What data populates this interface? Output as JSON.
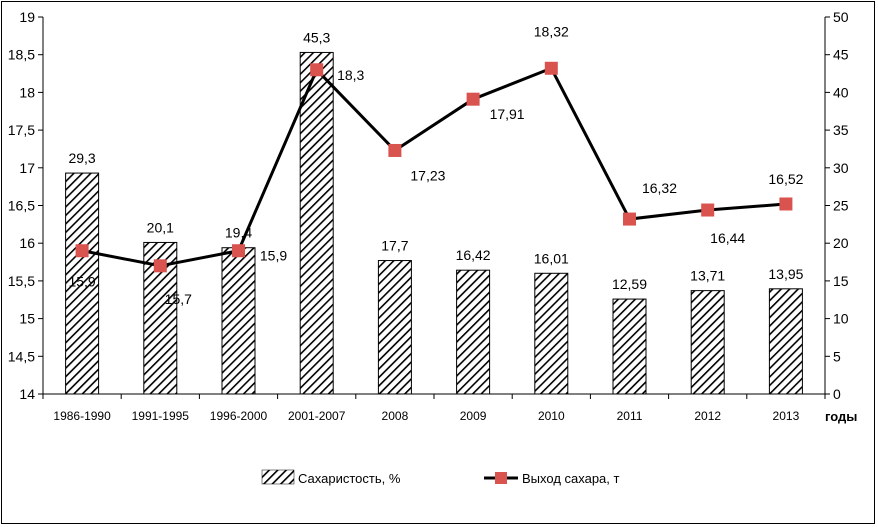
{
  "chart_data": {
    "type": "bar+line",
    "xlabel": "годы",
    "categories": [
      "1986-1990",
      "1991-1995",
      "1996-2000",
      "2001-2007",
      "2008",
      "2009",
      "2010",
      "2011",
      "2012",
      "2013"
    ],
    "series": [
      {
        "name": "Сахаристость, %",
        "kind": "bar",
        "axis": "right",
        "values": [
          29.3,
          20.1,
          19.4,
          45.3,
          17.7,
          16.42,
          16.01,
          12.59,
          13.71,
          13.95
        ],
        "labels": [
          "29,3",
          "20,1",
          "19,4",
          "45,3",
          "17,7",
          "16,42",
          "16,01",
          "12,59",
          "13,71",
          "13,95"
        ],
        "fill": "hatched diagonal black on white"
      },
      {
        "name": "Выход сахара, т",
        "kind": "line",
        "axis": "left",
        "values": [
          15.9,
          15.7,
          15.9,
          18.3,
          17.23,
          17.91,
          18.32,
          16.32,
          16.44,
          16.52
        ],
        "labels": [
          "15,9",
          "15,7",
          "15,9",
          "18,3",
          "17,23",
          "17,91",
          "18,32",
          "16,32",
          "16,44",
          "16,52"
        ],
        "color": "#000000",
        "marker_color": "#D9534F"
      }
    ],
    "y_left": {
      "min": 14,
      "max": 19,
      "step": 0.5,
      "ticks": [
        "14",
        "14,5",
        "15",
        "15,5",
        "16",
        "16,5",
        "17",
        "17,5",
        "18",
        "18,5",
        "19"
      ]
    },
    "y_right": {
      "min": 0,
      "max": 50,
      "step": 5,
      "ticks": [
        "0",
        "5",
        "10",
        "15",
        "20",
        "25",
        "30",
        "35",
        "40",
        "45",
        "50"
      ]
    },
    "legend_position": "bottom",
    "grid": false
  }
}
